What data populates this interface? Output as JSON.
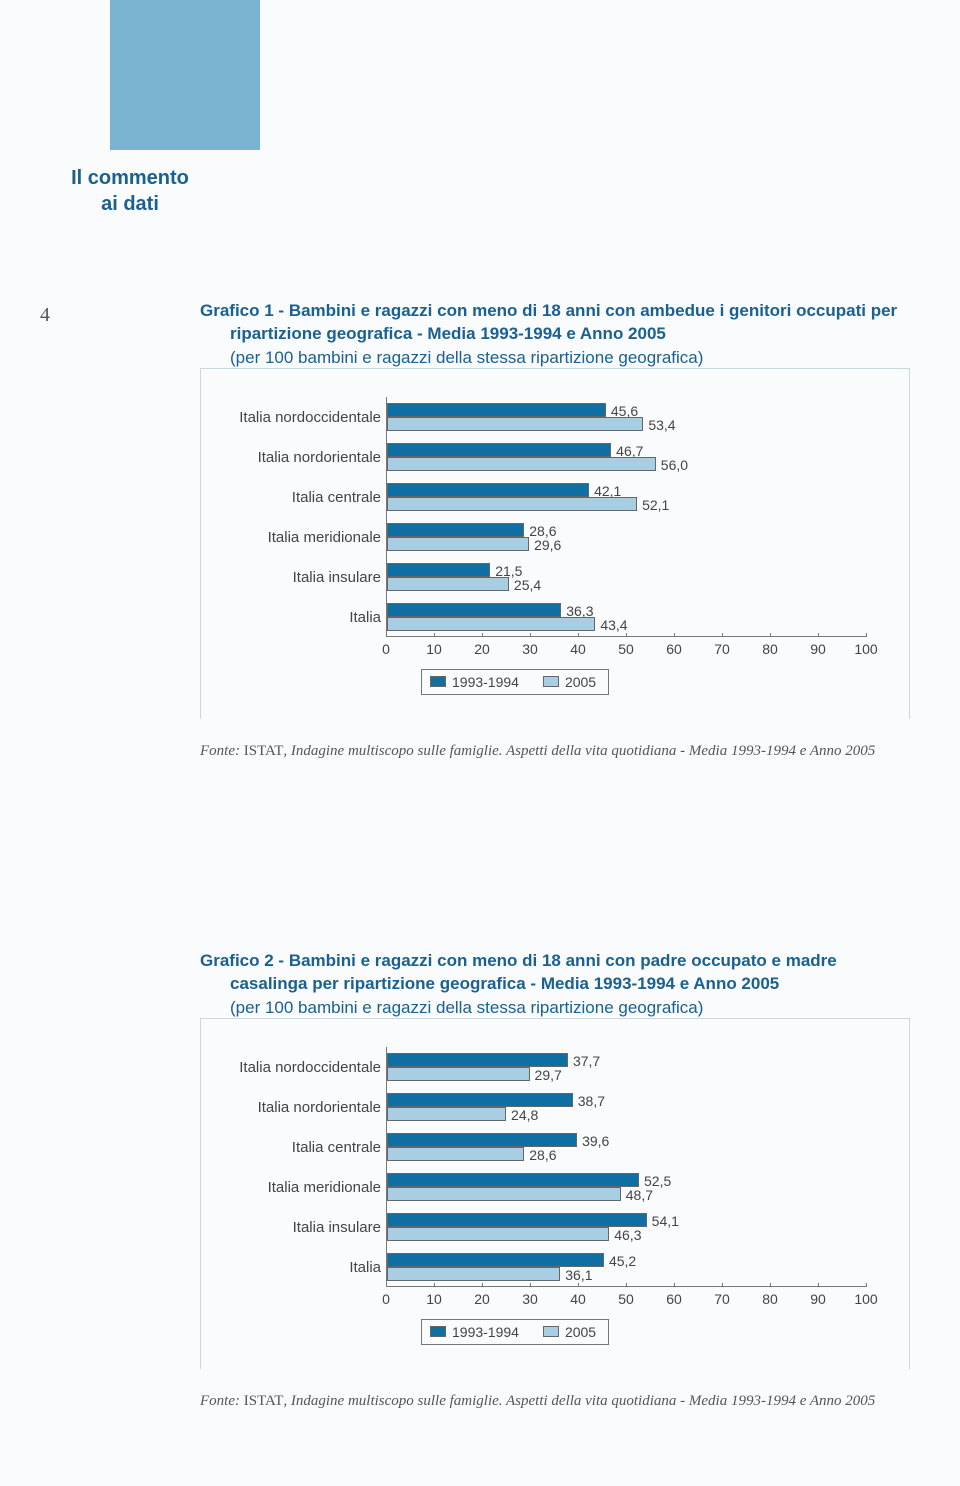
{
  "page_number": "4",
  "side_label": "Il commento ai dati",
  "colors": {
    "series1": "#0f6fa3",
    "series2": "#a7cee3",
    "title": "#1a6091",
    "band": "#7ab3cf"
  },
  "axis": {
    "min": 0,
    "max": 100,
    "step": 10
  },
  "legend": {
    "s1": "1993-1994",
    "s2": "2005"
  },
  "chart1": {
    "title_lead": "Grafico 1 - ",
    "title_rest": "Bambini e ragazzi con meno di 18 anni con ambedue i genitori occupati per ripartizione geografica - Media 1993-1994 e Anno 2005",
    "subtitle": "(per 100 bambini e ragazzi della stessa ripartizione geografica)",
    "categories": [
      {
        "label": "Italia nordoccidentale",
        "v1": 45.6,
        "v2": 53.4,
        "t1": "45,6",
        "t2": "53,4"
      },
      {
        "label": "Italia nordorientale",
        "v1": 46.7,
        "v2": 56.0,
        "t1": "46,7",
        "t2": "56,0"
      },
      {
        "label": "Italia centrale",
        "v1": 42.1,
        "v2": 52.1,
        "t1": "42,1",
        "t2": "52,1"
      },
      {
        "label": "Italia meridionale",
        "v1": 28.6,
        "v2": 29.6,
        "t1": "28,6",
        "t2": "29,6"
      },
      {
        "label": "Italia insulare",
        "v1": 21.5,
        "v2": 25.4,
        "t1": "21,5",
        "t2": "25,4"
      },
      {
        "label": "Italia",
        "v1": 36.3,
        "v2": 43.4,
        "t1": "36,3",
        "t2": "43,4"
      }
    ],
    "fonte": "Fonte: ISTAT, Indagine multiscopo sulle famiglie. Aspetti della vita quotidiana - Media 1993-1994 e Anno 2005"
  },
  "chart2": {
    "title_lead": "Grafico 2 - ",
    "title_rest": "Bambini e ragazzi con meno di 18 anni con padre occupato e madre casalinga per ripartizione geografica - Media 1993-1994 e Anno 2005",
    "subtitle": "(per 100 bambini e ragazzi della stessa ripartizione geografica)",
    "categories": [
      {
        "label": "Italia nordoccidentale",
        "v1": 37.7,
        "v2": 29.7,
        "t1": "37,7",
        "t2": "29,7"
      },
      {
        "label": "Italia nordorientale",
        "v1": 38.7,
        "v2": 24.8,
        "t1": "38,7",
        "t2": "24,8"
      },
      {
        "label": "Italia centrale",
        "v1": 39.6,
        "v2": 28.6,
        "t1": "39,6",
        "t2": "28,6"
      },
      {
        "label": "Italia meridionale",
        "v1": 52.5,
        "v2": 48.7,
        "t1": "52,5",
        "t2": "48,7"
      },
      {
        "label": "Italia insulare",
        "v1": 54.1,
        "v2": 46.3,
        "t1": "54,1",
        "t2": "46,3"
      },
      {
        "label": "Italia",
        "v1": 45.2,
        "v2": 36.1,
        "t1": "45,2",
        "t2": "36,1"
      }
    ],
    "fonte": "Fonte: ISTAT, Indagine multiscopo sulle famiglie. Aspetti della vita quotidiana - Media 1993-1994 e Anno 2005"
  }
}
